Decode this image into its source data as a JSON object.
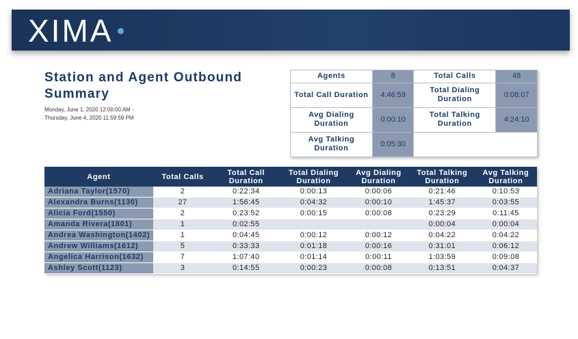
{
  "header": {
    "logo_text": "XIMA"
  },
  "report": {
    "title": "Station and Agent Outbound Summary",
    "date_line1": "Monday, June 1, 2020 12:00:00 AM -",
    "date_line2": "Thursday, June 4, 2020 11:59:59 PM"
  },
  "summary": {
    "agents_label": "Agents",
    "agents_value": "8",
    "total_calls_label": "Total Calls",
    "total_calls_value": "48",
    "total_call_duration_label": "Total Call Duration",
    "total_call_duration_value": "4:46:59",
    "total_dialing_duration_label": "Total Dialing Duration",
    "total_dialing_duration_value": "0:08:07",
    "avg_dialing_duration_label": "Avg Dialing Duration",
    "avg_dialing_duration_value": "0:00:10",
    "total_talking_duration_label": "Total Talking Duration",
    "total_talking_duration_value": "4:24:10",
    "avg_talking_duration_label": "Avg Talking Duration",
    "avg_talking_duration_value": "0:05:30"
  },
  "table": {
    "columns": [
      "Agent",
      "Total Calls",
      "Total Call Duration",
      "Total Dialing Duration",
      "Avg Dialing Duration",
      "Total Talking Duration",
      "Avg Talking Duration"
    ],
    "rows": [
      [
        "Adriana Taylor(1570)",
        "2",
        "0:22:34",
        "0:00:13",
        "0:00:06",
        "0:21:46",
        "0:10:53"
      ],
      [
        "Alexandra Burns(1130)",
        "27",
        "1:56:45",
        "0:04:32",
        "0:00:10",
        "1:45:37",
        "0:03:55"
      ],
      [
        "Alicia Ford(1550)",
        "2",
        "0:23:52",
        "0:00:15",
        "0:00:08",
        "0:23:29",
        "0:11:45"
      ],
      [
        "Amanda Rivera(1801)",
        "1",
        "0:02:55",
        "",
        "",
        "0:00:04",
        "0:00:04"
      ],
      [
        "Andrea Washington(1402)",
        "1",
        "0:04:45",
        "0:00:12",
        "0:00:12",
        "0:04:22",
        "0:04:22"
      ],
      [
        "Andrew Williams(1612)",
        "5",
        "0:33:33",
        "0:01:18",
        "0:00:16",
        "0:31:01",
        "0:06:12"
      ],
      [
        "Angelica Harrison(1632)",
        "7",
        "1:07:40",
        "0:01:14",
        "0:00:11",
        "1:03:59",
        "0:09:08"
      ],
      [
        "Ashley Scott(1123)",
        "3",
        "0:14:55",
        "0:00:23",
        "0:00:08",
        "0:13:51",
        "0:04:37"
      ]
    ]
  }
}
